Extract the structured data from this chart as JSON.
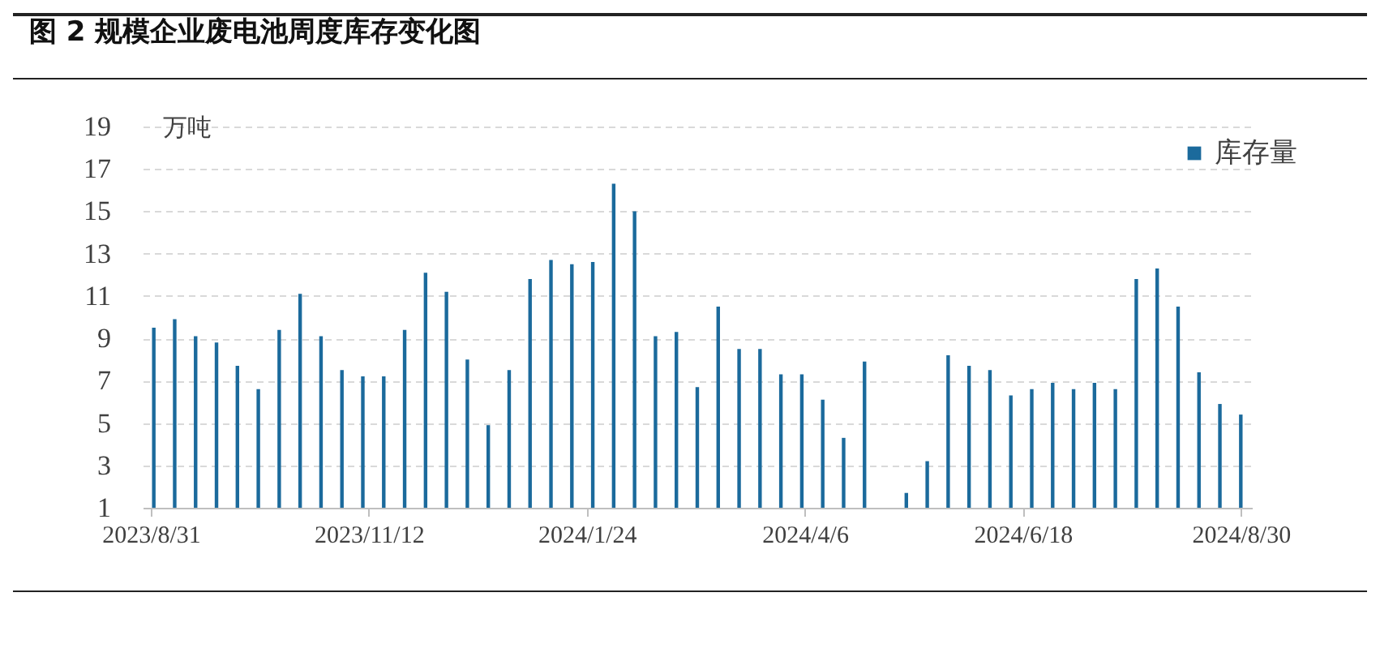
{
  "chart_data": {
    "type": "bar",
    "title": "图 2 规模企业废电池周度库存变化图",
    "ylabel": "万吨",
    "x": [
      "2023-09-01",
      "2023-09-08",
      "2023-09-15",
      "2023-09-22",
      "2023-09-29",
      "2023-10-06",
      "2023-10-13",
      "2023-10-20",
      "2023-10-27",
      "2023-11-03",
      "2023-11-10",
      "2023-11-17",
      "2023-11-24",
      "2023-12-01",
      "2023-12-08",
      "2023-12-15",
      "2023-12-22",
      "2023-12-29",
      "2024-01-05",
      "2024-01-12",
      "2024-01-19",
      "2024-01-26",
      "2024-02-02",
      "2024-02-09",
      "2024-02-16",
      "2024-02-23",
      "2024-03-01",
      "2024-03-08",
      "2024-03-15",
      "2024-03-22",
      "2024-03-29",
      "2024-04-05",
      "2024-04-12",
      "2024-04-19",
      "2024-04-26",
      "2024-05-03",
      "2024-05-10",
      "2024-05-17",
      "2024-05-24",
      "2024-05-31",
      "2024-06-07",
      "2024-06-14",
      "2024-06-21",
      "2024-06-28",
      "2024-07-05",
      "2024-07-12",
      "2024-07-19",
      "2024-07-26",
      "2024-08-02",
      "2024-08-09",
      "2024-08-16",
      "2024-08-23",
      "2024-08-30"
    ],
    "series": [
      {
        "name": "库存量",
        "color": "#1b6a9c",
        "values": [
          9.5,
          9.9,
          9.1,
          8.8,
          7.7,
          6.6,
          9.4,
          11.1,
          9.1,
          7.5,
          7.2,
          7.2,
          9.4,
          12.1,
          11.2,
          8.0,
          4.9,
          7.5,
          11.8,
          12.7,
          12.5,
          12.6,
          16.3,
          15.0,
          9.1,
          9.3,
          6.7,
          10.5,
          8.5,
          8.5,
          7.3,
          7.3,
          6.1,
          4.3,
          7.9,
          null,
          1.7,
          3.2,
          8.2,
          7.7,
          7.5,
          6.3,
          6.6,
          6.9,
          6.6,
          6.9,
          6.6,
          11.8,
          12.3,
          10.5,
          7.4,
          5.9,
          5.4
        ]
      }
    ],
    "xlim": [
      "2023-08-31",
      "2024-08-31"
    ],
    "xticks": [
      {
        "value": "2023-08-31",
        "label": "2023/8/31"
      },
      {
        "value": "2023-11-12",
        "label": "2023/11/12"
      },
      {
        "value": "2024-01-24",
        "label": "2024/1/24"
      },
      {
        "value": "2024-04-06",
        "label": "2024/4/6"
      },
      {
        "value": "2024-06-18",
        "label": "2024/6/18"
      },
      {
        "value": "2024-08-30",
        "label": "2024/8/30"
      }
    ],
    "ylim": [
      1,
      19
    ],
    "yticks": [
      1,
      3,
      5,
      7,
      9,
      11,
      13,
      15,
      17,
      19
    ],
    "grid": "y",
    "legend": "top right"
  }
}
